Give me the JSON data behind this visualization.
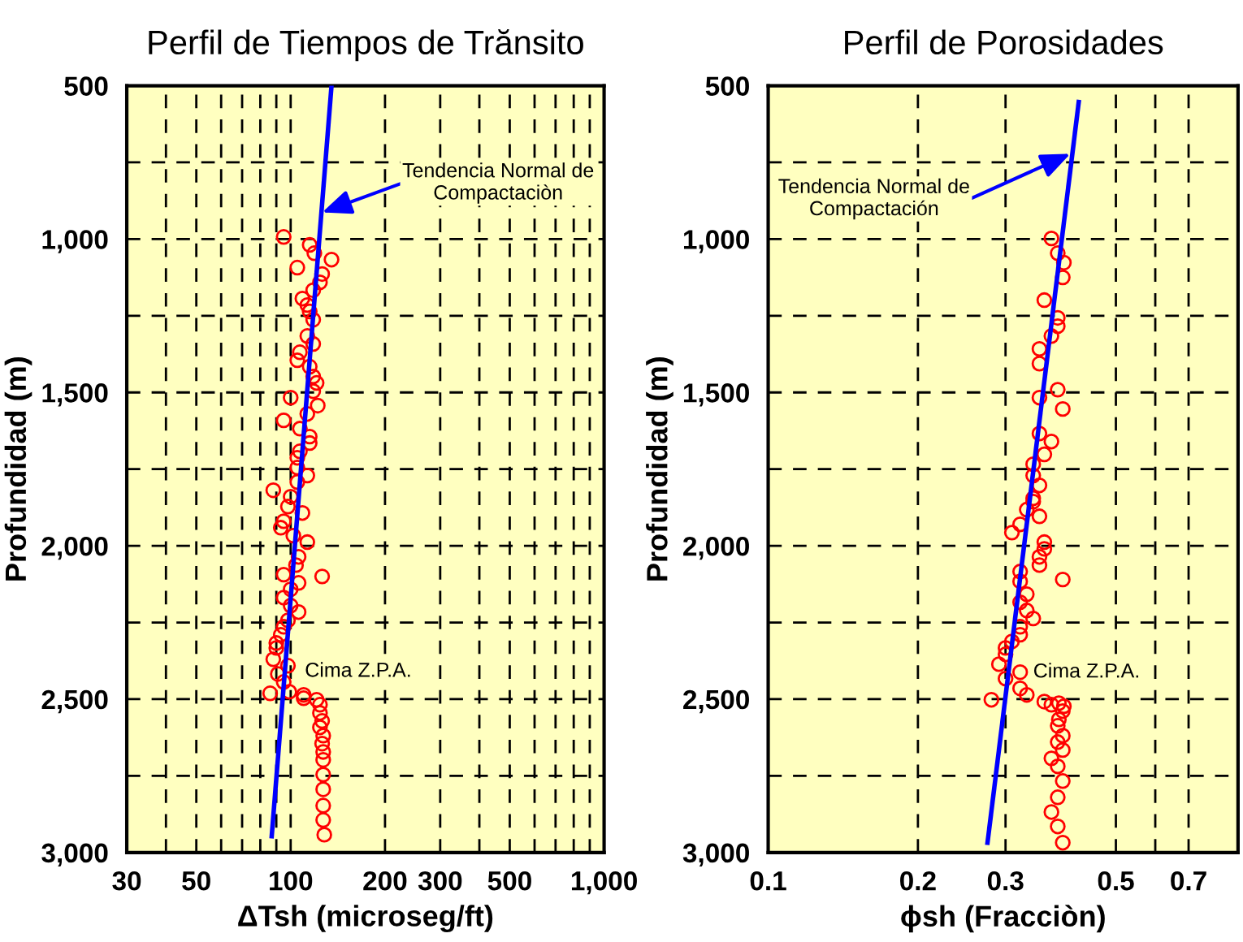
{
  "chart_data": [
    {
      "type": "scatter",
      "title": "Perfil de Tiempos de Trănsito",
      "xlabel": "ΔTsh (microseg/ft)",
      "ylabel": "Profundidad (m)",
      "log": "x",
      "grid": true,
      "xlim": [
        30,
        1000
      ],
      "xticks": [
        30,
        {
          "value": 40,
          "label": null
        },
        50,
        {
          "value": 60,
          "label": null
        },
        {
          "value": 70,
          "label": null
        },
        {
          "value": 80,
          "label": null
        },
        {
          "value": 90,
          "label": null
        },
        100,
        200,
        300,
        {
          "value": 400,
          "label": null
        },
        500,
        {
          "value": 600,
          "label": null
        },
        {
          "value": 700,
          "label": null
        },
        {
          "value": 800,
          "label": null
        },
        {
          "value": 900,
          "label": null
        },
        {
          "value": 1000,
          "label": "1,000"
        }
      ],
      "ylim": [
        3000,
        500
      ],
      "yticks": [
        500,
        {
          "value": 750,
          "label": null
        },
        {
          "value": 1000,
          "label": "1,000"
        },
        {
          "value": 1250,
          "label": null
        },
        {
          "value": 1500,
          "label": "1,500"
        },
        {
          "value": 1750,
          "label": null
        },
        {
          "value": 2000,
          "label": "2,000"
        },
        {
          "value": 2250,
          "label": null
        },
        {
          "value": 2500,
          "label": "2,500"
        },
        {
          "value": 2750,
          "label": null
        },
        {
          "value": 3000,
          "label": "3,000"
        }
      ],
      "series": [
        {
          "color": "#ff0000",
          "marker": "circle",
          "x": [
            95,
            115,
            119,
            135,
            105,
            126,
            124,
            118,
            109,
            113,
            115,
            118,
            113,
            118,
            107,
            105,
            115,
            118,
            121,
            118,
            100,
            122,
            113,
            95,
            107,
            115,
            115,
            107,
            105,
            105,
            113,
            88,
            100,
            105,
            98,
            109,
            95,
            93,
            102,
            113,
            106,
            104,
            95,
            126,
            106,
            100,
            95,
            100,
            106,
            98,
            95,
            93,
            90,
            90,
            88,
            98,
            91,
            95,
            86,
            99,
            110,
            110,
            121,
            124,
            124,
            126,
            124,
            127,
            126,
            127,
            127,
            127,
            127,
            127,
            127,
            128
          ],
          "values": [
            993,
            1019,
            1046,
            1067,
            1093,
            1114,
            1141,
            1167,
            1194,
            1215,
            1236,
            1263,
            1316,
            1342,
            1369,
            1395,
            1416,
            1448,
            1469,
            1496,
            1517,
            1543,
            1570,
            1591,
            1618,
            1644,
            1665,
            1692,
            1713,
            1745,
            1771,
            1819,
            1840,
            1792,
            1872,
            1893,
            1920,
            1941,
            1967,
            1988,
            2036,
            2063,
            2094,
            2100,
            2121,
            2142,
            2169,
            2195,
            2216,
            2243,
            2264,
            2290,
            2317,
            2333,
            2370,
            2391,
            2418,
            2444,
            2481,
            2476,
            2486,
            2497,
            2502,
            2518,
            2545,
            2571,
            2592,
            2619,
            2645,
            2672,
            2698,
            2746,
            2794,
            2847,
            2894,
            2942
          ]
        },
        {
          "type": "line",
          "color": "#0000ff",
          "x": [
            135,
            87
          ],
          "values": [
            500,
            2947
          ]
        }
      ],
      "annotations": [
        {
          "text": "Tendencia Normal de\nCompactaciòn",
          "x": 126,
          "y": 913
        },
        "Cima Z.P.A."
      ]
    },
    {
      "type": "scatter",
      "title": "Perfil de Porosidades",
      "xlabel": "ϕsh (Fracciòn)",
      "ylabel": "Profundidad (m)",
      "log": "x",
      "grid": true,
      "xlim": [
        0.1,
        0.88
      ],
      "xticks": [
        0.1,
        0.2,
        0.3,
        0.5,
        {
          "value": 0.6,
          "label": null
        },
        0.7
      ],
      "ylim": [
        3000,
        500
      ],
      "yticks": [
        500,
        {
          "value": 750,
          "label": null
        },
        {
          "value": 1000,
          "label": "1,000"
        },
        {
          "value": 1250,
          "label": null
        },
        {
          "value": 1500,
          "label": "1,500"
        },
        {
          "value": 1750,
          "label": null
        },
        {
          "value": 2000,
          "label": "2,000"
        },
        {
          "value": 2250,
          "label": null
        },
        {
          "value": 2500,
          "label": "2,500"
        },
        {
          "value": 2750,
          "label": null
        },
        {
          "value": 3000,
          "label": "3,000"
        }
      ],
      "series": [
        {
          "color": "#ff0000",
          "marker": "circle",
          "x": [
            0.371,
            0.382,
            0.393,
            0.391,
            0.359,
            0.382,
            0.382,
            0.371,
            0.351,
            0.351,
            0.382,
            0.351,
            0.391,
            0.351,
            0.371,
            0.359,
            0.341,
            0.341,
            0.351,
            0.341,
            0.341,
            0.331,
            0.351,
            0.321,
            0.309,
            0.359,
            0.359,
            0.351,
            0.351,
            0.391,
            0.321,
            0.321,
            0.331,
            0.321,
            0.331,
            0.341,
            0.321,
            0.321,
            0.309,
            0.3,
            0.3,
            0.291,
            0.321,
            0.3,
            0.321,
            0.331,
            0.281,
            0.359,
            0.371,
            0.384,
            0.393,
            0.391,
            0.384,
            0.382,
            0.391,
            0.382,
            0.391,
            0.371,
            0.382,
            0.391,
            0.382,
            0.371,
            0.382,
            0.391
          ],
          "values": [
            998,
            1046,
            1077,
            1125,
            1199,
            1257,
            1284,
            1316,
            1358,
            1406,
            1491,
            1517,
            1554,
            1634,
            1660,
            1702,
            1734,
            1771,
            1803,
            1845,
            1856,
            1882,
            1904,
            1930,
            1957,
            1988,
            2010,
            2036,
            2063,
            2110,
            2084,
            2116,
            2158,
            2184,
            2211,
            2237,
            2264,
            2290,
            2312,
            2333,
            2354,
            2386,
            2412,
            2433,
            2465,
            2486,
            2502,
            2508,
            2518,
            2513,
            2523,
            2539,
            2566,
            2587,
            2619,
            2640,
            2666,
            2693,
            2719,
            2767,
            2820,
            2868,
            2915,
            2968
          ]
        },
        {
          "type": "line",
          "color": "#0000ff",
          "x": [
            0.421,
            0.276
          ],
          "values": [
            553,
            2968
          ]
        }
      ],
      "annotations": [
        {
          "text": "Tendencia Normal de\nCompactación",
          "x": 0.405,
          "y": 722
        },
        "Cima Z.P.A."
      ]
    }
  ]
}
